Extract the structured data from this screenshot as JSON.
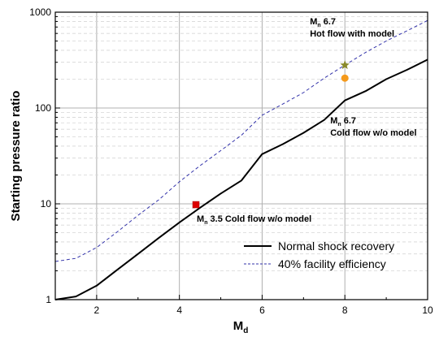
{
  "chart_data": {
    "type": "line",
    "xlabel": "M",
    "xlabel_sub": "d",
    "ylabel": "Starting pressure ratio",
    "xlim": [
      1,
      10
    ],
    "ylim": [
      1,
      1000
    ],
    "y_scale": "log",
    "grid": true,
    "x_ticks": [
      "2",
      "4",
      "6",
      "8",
      "10"
    ],
    "y_ticks": [
      "1",
      "10",
      "100",
      "1000"
    ],
    "legend_position": "bottom-right",
    "series": [
      {
        "name": "Normal shock recovery",
        "style": "solid",
        "color": "#000000",
        "x": [
          1.0,
          1.5,
          2.0,
          2.5,
          3.0,
          3.5,
          4.0,
          4.5,
          5.0,
          5.5,
          6.0,
          6.5,
          7.0,
          7.5,
          8.0,
          8.5,
          9.0,
          9.5,
          10.0
        ],
        "y": [
          1.0,
          1.08,
          1.4,
          2.05,
          3.0,
          4.4,
          6.4,
          9.1,
          12.8,
          17.5,
          33.0,
          42.0,
          55.0,
          75.0,
          120.0,
          150.0,
          200.0,
          250.0,
          320.0
        ]
      },
      {
        "name": "40% facility efficiency",
        "style": "dashed",
        "color": "#3333aa",
        "x": [
          1.0,
          1.5,
          2.0,
          2.5,
          3.0,
          3.5,
          4.0,
          4.5,
          5.0,
          5.5,
          6.0,
          6.5,
          7.0,
          7.5,
          8.0,
          8.5,
          9.0,
          9.5,
          10.0
        ],
        "y": [
          2.5,
          2.7,
          3.5,
          5.1,
          7.6,
          11.0,
          17.0,
          25.0,
          36.0,
          52.0,
          84.0,
          110.0,
          145.0,
          205.0,
          280.0,
          380.0,
          500.0,
          640.0,
          820.0
        ]
      }
    ],
    "markers": [
      {
        "x": 4.4,
        "y": 9.8,
        "shape": "square",
        "color": "#dd0000",
        "label_sub": "n",
        "label_lines": [
          "3.5 Cold flow w/o model"
        ]
      },
      {
        "x": 8.0,
        "y": 205,
        "shape": "circle",
        "color": "#f59a1b",
        "label_sub": "n",
        "label_lines": [
          "6.7",
          "Cold flow w/o model"
        ]
      },
      {
        "x": 8.0,
        "y": 280,
        "shape": "star",
        "color": "#8a8a2a",
        "label_sub": "n",
        "label_lines": [
          "6.7",
          "Hot flow with model"
        ]
      }
    ],
    "annotation_prefix": "M"
  }
}
